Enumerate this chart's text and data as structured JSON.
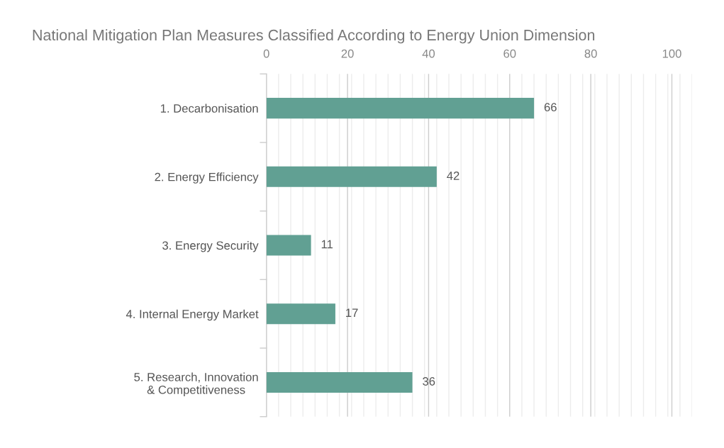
{
  "chart_data": {
    "type": "bar",
    "orientation": "horizontal",
    "title": "National Mitigation Plan Measures Classified According to Energy Union Dimension",
    "categories": [
      "1. Decarbonisation",
      "2. Energy Efficiency",
      "3. Energy Security",
      "4. Internal Energy Market",
      "5. Research, Innovation\n& Competitiveness"
    ],
    "values": [
      66,
      42,
      11,
      17,
      36
    ],
    "color": "#61a093",
    "xlim": [
      0,
      105
    ],
    "xticks": [
      0,
      {
        "value": 3,
        "label": null
      },
      {
        "value": 6,
        "label": null
      },
      {
        "value": 9,
        "label": null
      },
      {
        "value": 12,
        "label": null
      },
      {
        "value": 15,
        "label": null
      },
      {
        "value": 18,
        "label": null
      },
      20,
      {
        "value": 21,
        "label": null
      },
      {
        "value": 24,
        "label": null
      },
      {
        "value": 27,
        "label": null
      },
      {
        "value": 30,
        "label": null
      },
      {
        "value": 33,
        "label": null
      },
      {
        "value": 36,
        "label": null
      },
      {
        "value": 39,
        "label": null
      },
      40,
      {
        "value": 42,
        "label": null
      },
      {
        "value": 45,
        "label": null
      },
      {
        "value": 48,
        "label": null
      },
      {
        "value": 51,
        "label": null
      },
      {
        "value": 54,
        "label": null
      },
      {
        "value": 57,
        "label": null
      },
      60,
      {
        "value": 63,
        "label": null
      },
      {
        "value": 66,
        "label": null
      },
      {
        "value": 69,
        "label": null
      },
      {
        "value": 72,
        "label": null
      },
      {
        "value": 75,
        "label": null
      },
      {
        "value": 78,
        "label": null
      },
      80,
      {
        "value": 81,
        "label": null
      },
      {
        "value": 84,
        "label": null
      },
      {
        "value": 87,
        "label": null
      },
      {
        "value": 90,
        "label": null
      },
      {
        "value": 93,
        "label": null
      },
      {
        "value": 96,
        "label": null
      },
      {
        "value": 99,
        "label": null
      },
      100,
      {
        "value": 102,
        "label": null
      },
      {
        "value": 105,
        "label": null
      }
    ],
    "grid": "x",
    "data_labels": true
  }
}
